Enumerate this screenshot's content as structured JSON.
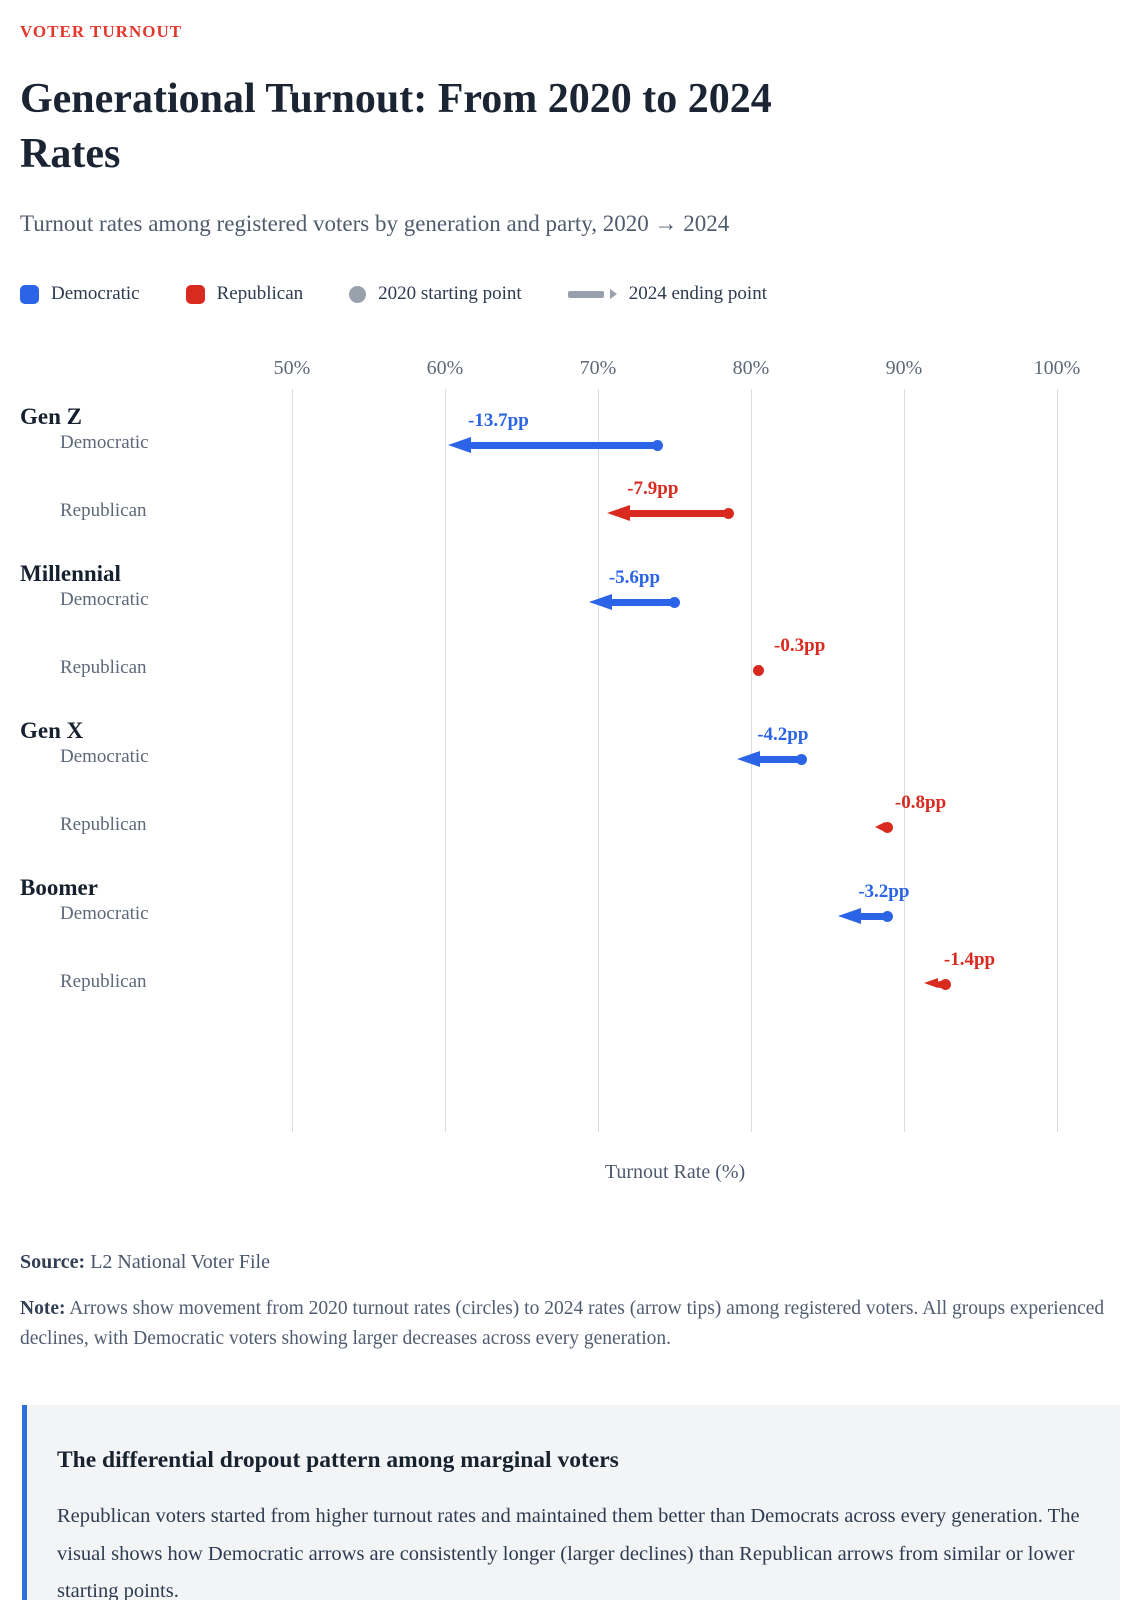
{
  "page": {
    "eyebrow": "VOTER TURNOUT",
    "title_lines": [
      "Generational Turnout: From 2020 to 2024",
      "Rates"
    ],
    "subtitle": "Turnout rates among registered voters by generation and party, 2020 → 2024"
  },
  "legend": {
    "items": [
      {
        "label": "Democratic",
        "icon": "blue-rounded-square",
        "color": "#2b64e6"
      },
      {
        "label": "Republican",
        "icon": "red-rounded-square",
        "color": "#d92a20"
      },
      {
        "label": "2020 starting point",
        "icon": "gray-circle",
        "color": "#98a0ac"
      },
      {
        "label": "2024 ending point",
        "icon": "gray-dash-arrow",
        "color": "#98a0ac"
      }
    ]
  },
  "chart_data": {
    "type": "arrow",
    "description": "Directional dumbbell/arrow plot: circles mark 2020 turnout, arrow tips mark 2024 turnout",
    "xlabel": "Turnout Rate (%)",
    "xlim": [
      50,
      100
    ],
    "x_tick_values": [
      50,
      60,
      70,
      80,
      90,
      100
    ],
    "x_tick_labels": [
      "50%",
      "60%",
      "70%",
      "80%",
      "90%",
      "100%"
    ],
    "grid": "vertical",
    "colors": {
      "dem": "#2b64e6",
      "rep": "#d92a20"
    },
    "groups": [
      {
        "generation": "Gen Z",
        "rows": [
          {
            "party": "Democratic",
            "series": "dem",
            "start_2020": 73.9,
            "end_2024": 60.2,
            "change_label": "-13.7pp"
          },
          {
            "party": "Republican",
            "series": "rep",
            "start_2020": 78.5,
            "end_2024": 70.6,
            "change_label": "-7.9pp"
          }
        ]
      },
      {
        "generation": "Millennial",
        "rows": [
          {
            "party": "Democratic",
            "series": "dem",
            "start_2020": 75.0,
            "end_2024": 69.4,
            "change_label": "-5.6pp"
          },
          {
            "party": "Republican",
            "series": "rep",
            "start_2020": 80.5,
            "end_2024": 80.2,
            "change_label": "-0.3pp"
          }
        ]
      },
      {
        "generation": "Gen X",
        "rows": [
          {
            "party": "Democratic",
            "series": "dem",
            "start_2020": 83.3,
            "end_2024": 79.1,
            "change_label": "-4.2pp"
          },
          {
            "party": "Republican",
            "series": "rep",
            "start_2020": 88.9,
            "end_2024": 88.1,
            "change_label": "-0.8pp"
          }
        ]
      },
      {
        "generation": "Boomer",
        "rows": [
          {
            "party": "Democratic",
            "series": "dem",
            "start_2020": 88.9,
            "end_2024": 85.7,
            "change_label": "-3.2pp"
          },
          {
            "party": "Republican",
            "series": "rep",
            "start_2020": 92.7,
            "end_2024": 91.3,
            "change_label": "-1.4pp"
          }
        ]
      }
    ]
  },
  "footer": {
    "source_label": "Source:",
    "source_text": " L2 National Voter File",
    "note_label": "Note:",
    "note_text": " Arrows show movement from 2020 turnout rates (circles) to 2024 rates (arrow tips) among registered voters. All groups experienced declines, with Democratic voters showing larger decreases across every generation."
  },
  "callout": {
    "heading": "The differential dropout pattern among marginal voters",
    "body": "Republican voters started from higher turnout rates and maintained them better than Democrats across every generation. The visual shows how Democratic arrows are consistently longer (larger declines) than Republican arrows from similar or lower starting points."
  }
}
